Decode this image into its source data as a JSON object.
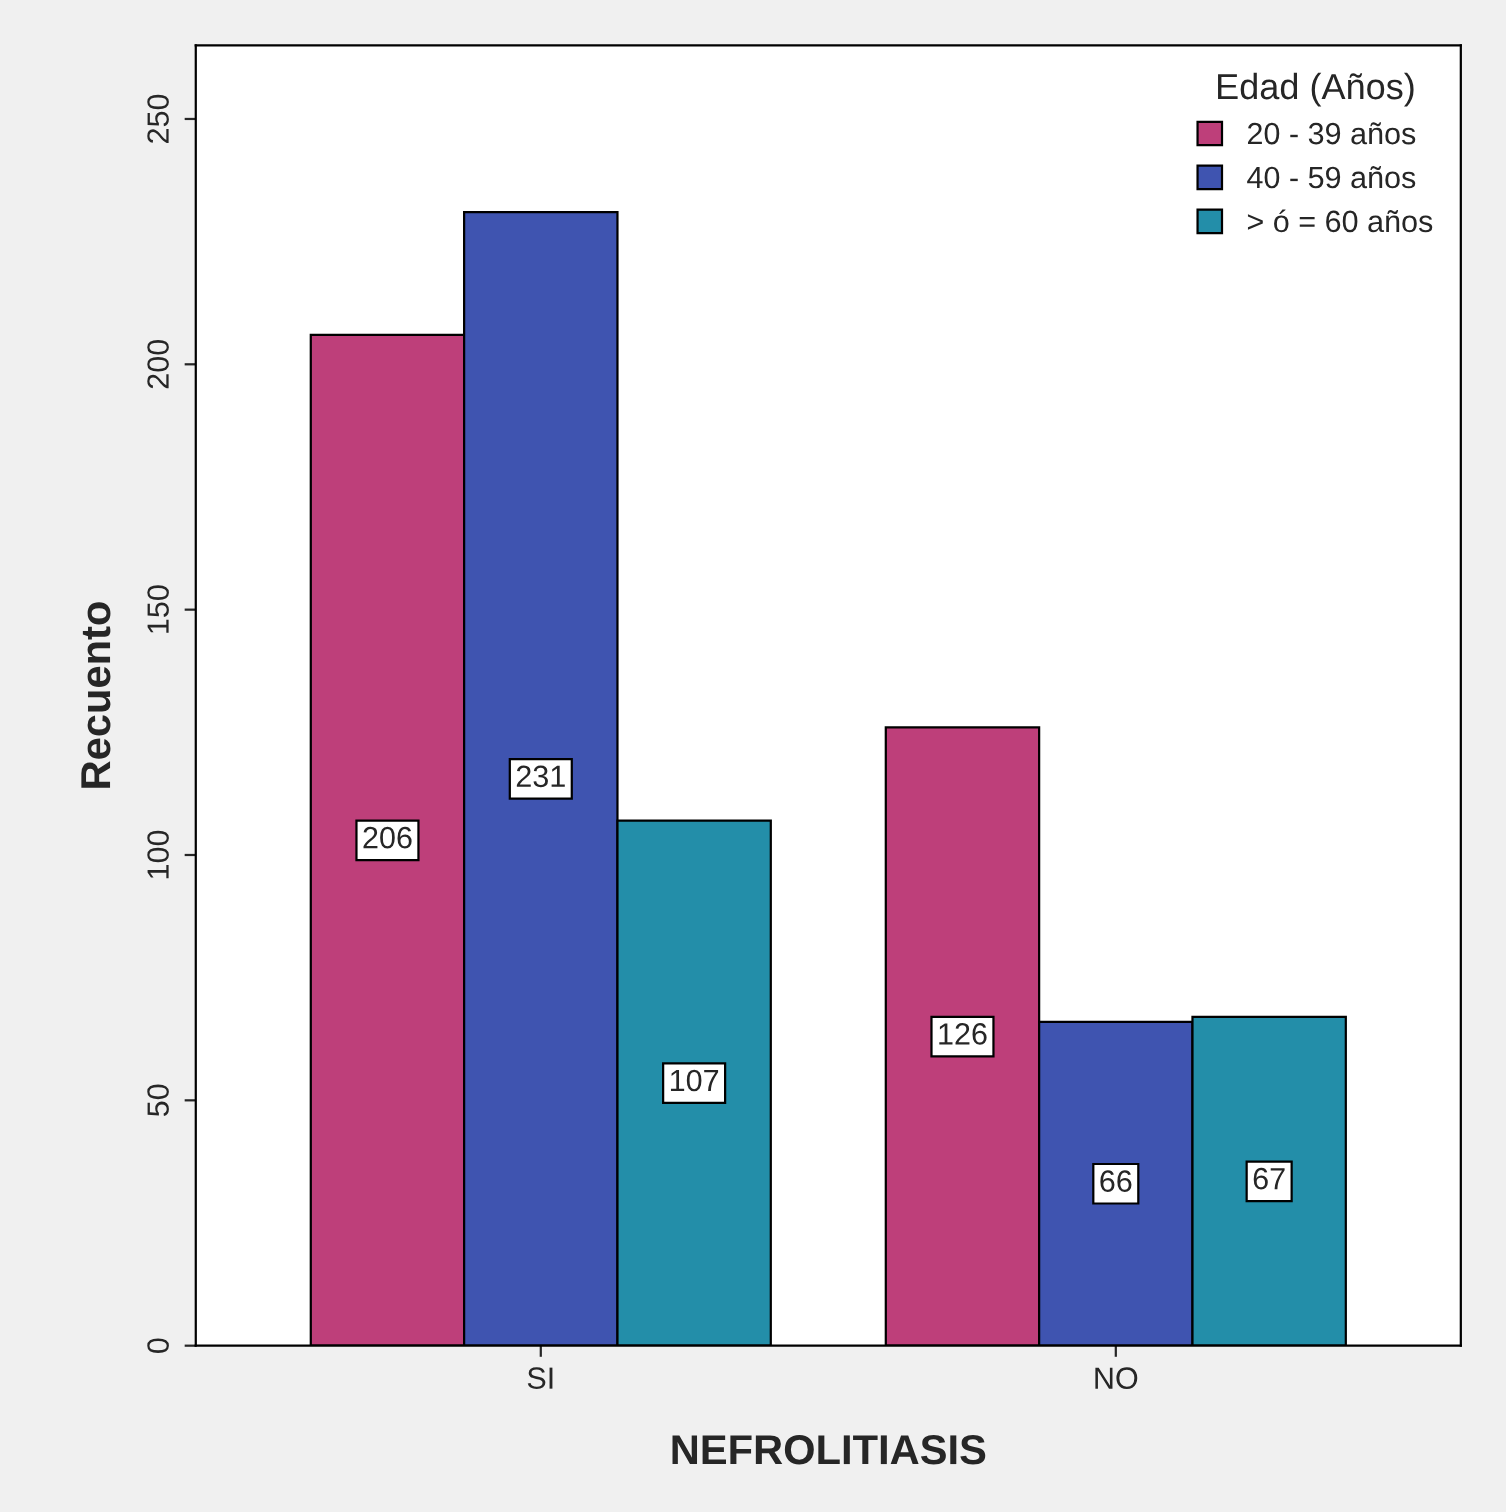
{
  "chart_data": {
    "type": "bar",
    "xlabel": "NEFROLITIASIS",
    "ylabel": "Recuento",
    "legend_title": "Edad (Años)",
    "categories": [
      "SI",
      "NO"
    ],
    "series": [
      {
        "name": "20 - 39 años",
        "color": "#be3f7a",
        "values": [
          206,
          126
        ]
      },
      {
        "name": "40 - 59 años",
        "color": "#3f54b0",
        "values": [
          231,
          66
        ]
      },
      {
        "name": "> ó = 60 años",
        "color": "#238ea9",
        "values": [
          107,
          67
        ]
      }
    ],
    "ylim": [
      0,
      265
    ],
    "yticks": [
      0,
      50,
      100,
      150,
      200,
      250
    ],
    "grid": false,
    "legend": "top right",
    "data_labels": true
  }
}
